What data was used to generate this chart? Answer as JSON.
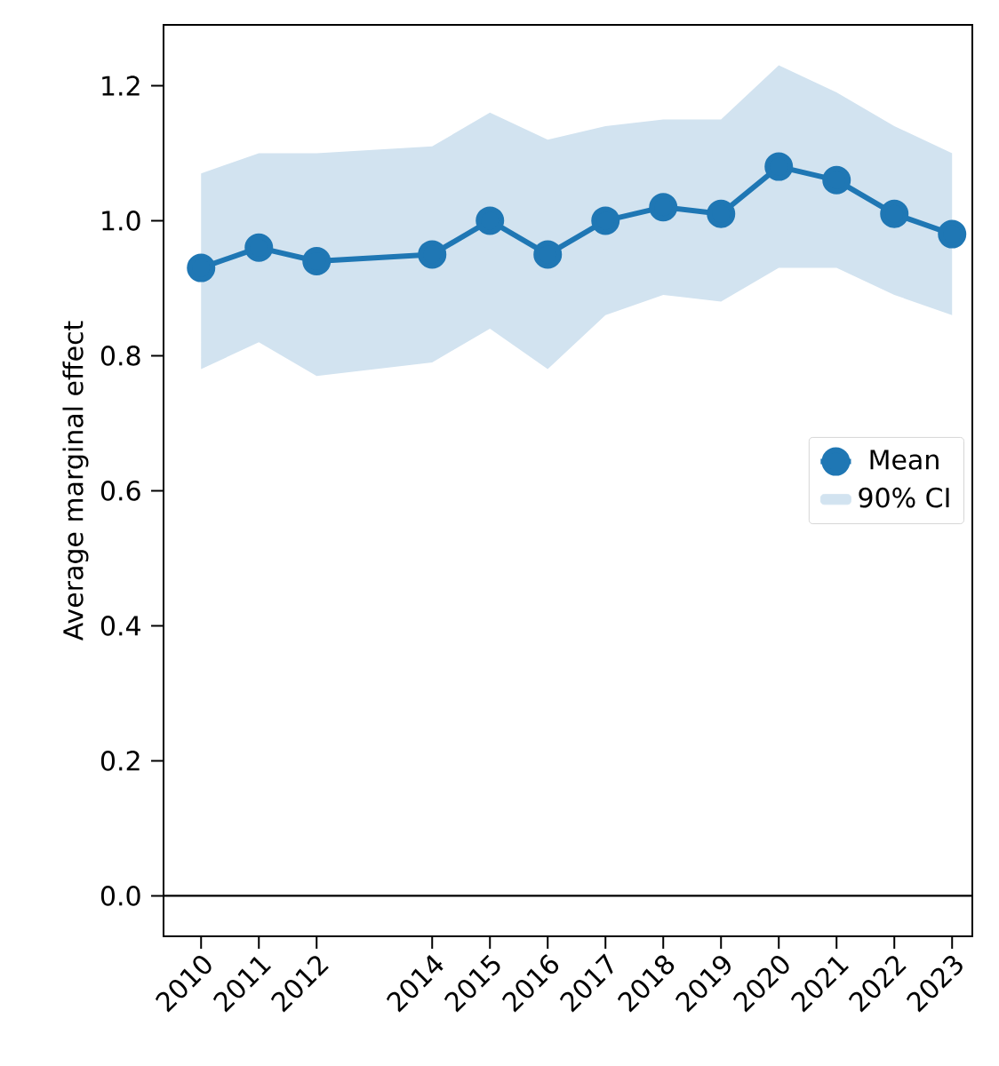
{
  "chart_data": {
    "type": "line",
    "ylabel": "Average marginal effect",
    "x": [
      2010,
      2011,
      2012,
      2014,
      2015,
      2016,
      2017,
      2018,
      2019,
      2020,
      2021,
      2022,
      2023
    ],
    "series": [
      {
        "name": "Mean",
        "color": "#1f77b4",
        "marker": "circle",
        "values": [
          0.93,
          0.96,
          0.94,
          0.95,
          1.0,
          0.95,
          1.0,
          1.02,
          1.01,
          1.08,
          1.06,
          1.01,
          0.98
        ]
      },
      {
        "name": "90% CI",
        "type": "area",
        "color": "#d2e3f0",
        "marker": "none",
        "values": [
          null,
          null,
          null,
          null,
          null,
          null,
          null,
          null,
          null,
          null,
          null,
          null,
          null
        ],
        "lower": [
          0.78,
          0.82,
          0.77,
          0.79,
          0.84,
          0.78,
          0.86,
          0.89,
          0.88,
          0.93,
          0.93,
          0.89,
          0.86
        ],
        "upper": [
          1.07,
          1.1,
          1.1,
          1.11,
          1.16,
          1.12,
          1.14,
          1.15,
          1.15,
          1.23,
          1.19,
          1.14,
          1.1
        ]
      }
    ],
    "xlim": [
      2009.35,
      2023.35
    ],
    "ylim": [
      -0.06,
      1.29
    ],
    "xticks": [
      2010,
      2011,
      2012,
      2014,
      2015,
      2016,
      2017,
      2018,
      2019,
      2020,
      2021,
      2022,
      2023
    ],
    "yticks": [
      {
        "value": 0,
        "label": "0.0"
      },
      0.2,
      0.4,
      0.6,
      0.8,
      {
        "value": 1,
        "label": "1.0"
      },
      1.2
    ],
    "ref_lines": [
      {
        "axis": "y",
        "value": 0,
        "color": "#000000"
      }
    ],
    "legend": "right",
    "line_style": "solid",
    "grid": false
  }
}
